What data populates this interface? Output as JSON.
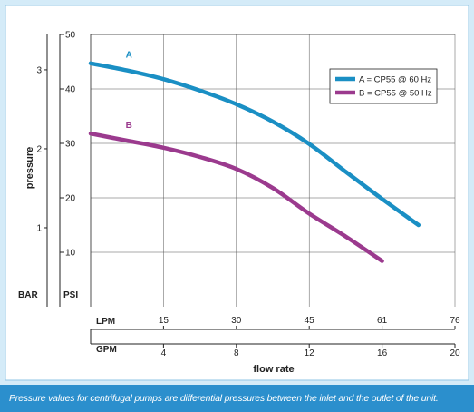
{
  "chart_data": {
    "type": "line",
    "ylabel": "pressure",
    "xlabel": "flow rate",
    "caption": "Pressure values for centrifugal pumps are differential pressures between the inlet and the outlet of the unit.",
    "y_axes": [
      {
        "unit": "BAR",
        "ticks": [
          1,
          2,
          3
        ]
      },
      {
        "unit": "PSI",
        "ticks": [
          10,
          20,
          30,
          40,
          50
        ]
      }
    ],
    "x_axes": [
      {
        "unit": "LPM",
        "ticks": [
          15,
          30,
          45,
          61,
          76
        ]
      },
      {
        "unit": "GPM",
        "ticks": [
          4,
          8,
          12,
          16,
          20
        ]
      }
    ],
    "xlim_gpm": [
      0,
      20
    ],
    "ylim_psi": [
      0,
      50
    ],
    "grid": true,
    "legend_position": "top-right",
    "series": [
      {
        "name": "A = CP55 @ 60 Hz",
        "label": "A",
        "color": "#1a8fc4",
        "x_gpm": [
          0,
          2,
          4,
          6,
          8,
          10,
          12,
          14,
          16,
          18
        ],
        "y_psi": [
          44.7,
          43.4,
          41.8,
          39.7,
          37.2,
          34.0,
          29.9,
          24.8,
          19.8,
          15.0
        ]
      },
      {
        "name": "B = CP55 @ 50 Hz",
        "label": "B",
        "color": "#9b3a8e",
        "x_gpm": [
          0,
          2,
          4,
          6,
          8,
          10,
          12,
          14,
          16
        ],
        "y_psi": [
          31.8,
          30.5,
          29.2,
          27.5,
          25.3,
          21.8,
          17.1,
          12.9,
          8.4
        ]
      }
    ]
  }
}
